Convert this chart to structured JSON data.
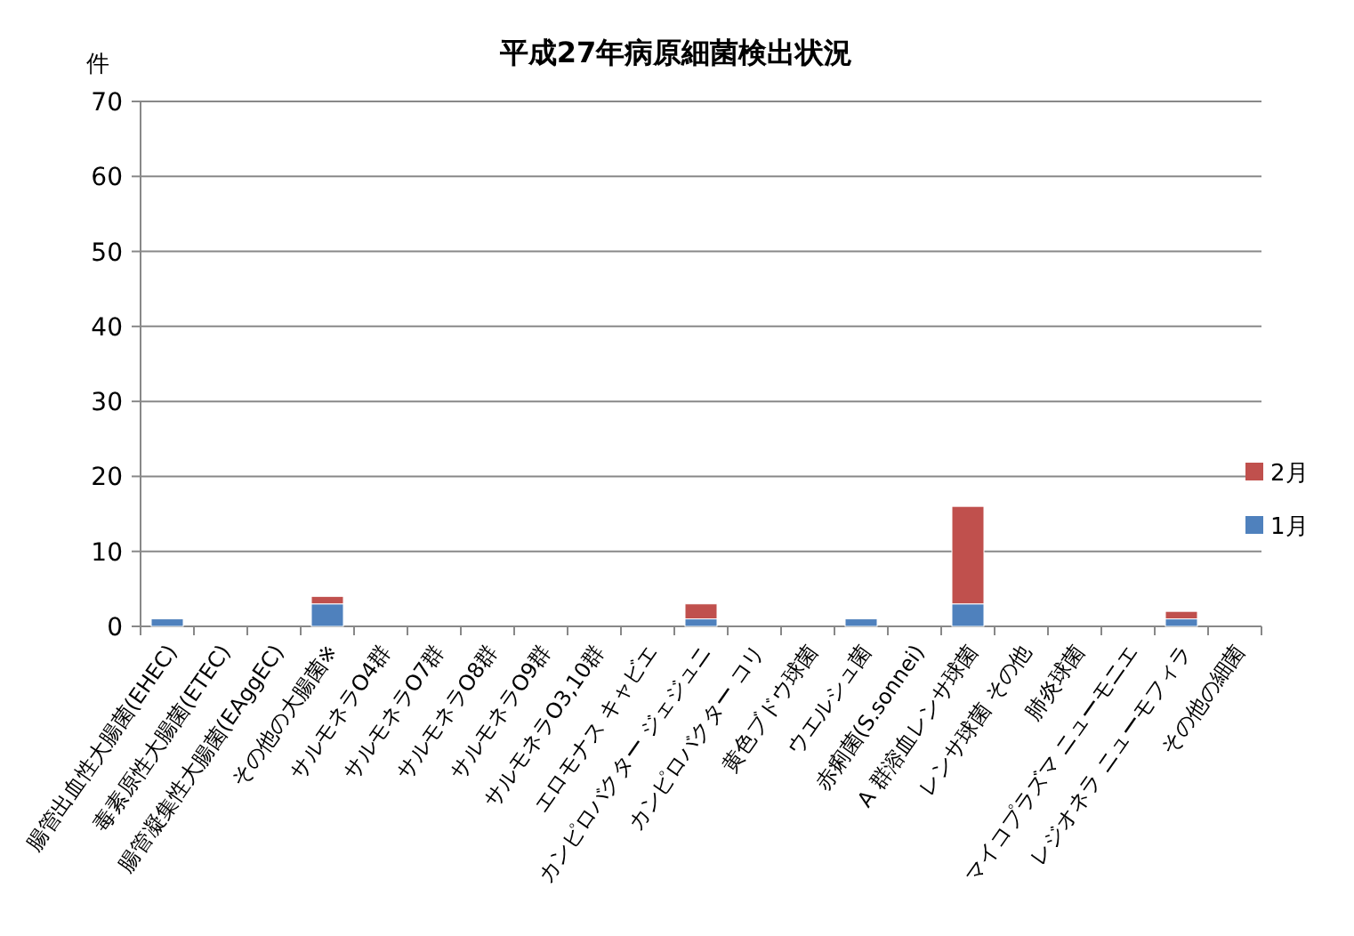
{
  "chart_data": {
    "type": "bar",
    "title": "平成27年病原細菌検出状況",
    "ylabel": "件",
    "stacked": true,
    "grid": "y",
    "legend": "right",
    "categories": [
      "腸管出血性大腸菌(EHEC)",
      "毒素原性大腸菌(ETEC)",
      "腸管凝集性大腸菌(EAggEC)",
      "その他の大腸菌※",
      "サルモネラO4群",
      "サルモネラO7群",
      "サルモネラO8群",
      "サルモネラO9群",
      "サルモネラO3,10群",
      "エロモナス キャビエ",
      "カンピロバクター ジェジュニ",
      "カンピロバクター コリ",
      "黄色ブドウ球菌",
      "ウエルシュ菌",
      "赤痢菌(S.sonnei)",
      "A 群溶血レンサ球菌",
      "レンサ球菌 その他",
      "肺炎球菌",
      "マイコプラズマ ニューモニエ",
      "レジオネラ ニューモフィラ",
      "その他の細菌"
    ],
    "series": [
      {
        "name": "1月",
        "color": "#4f81bd",
        "values": [
          1,
          0,
          0,
          3,
          0,
          0,
          0,
          0,
          0,
          0,
          1,
          0,
          0,
          1,
          0,
          3,
          0,
          0,
          0,
          1,
          0
        ]
      },
      {
        "name": "2月",
        "color": "#c0504d",
        "values": [
          0,
          0,
          0,
          1,
          0,
          0,
          0,
          0,
          0,
          0,
          2,
          0,
          0,
          0,
          0,
          13,
          0,
          0,
          0,
          1,
          0
        ]
      }
    ],
    "ylim": [
      0,
      70
    ],
    "yticks": [
      0,
      10,
      20,
      30,
      40,
      50,
      60,
      70
    ]
  }
}
